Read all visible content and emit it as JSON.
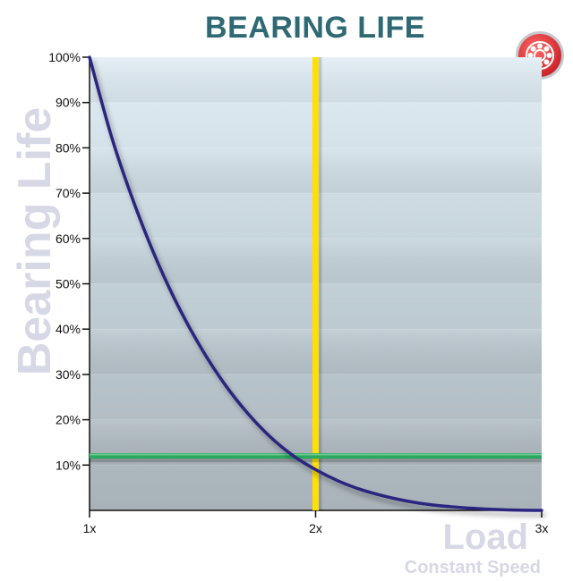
{
  "chart_data": {
    "type": "line",
    "title": "BEARING LIFE",
    "ylabel": "Bearing Life",
    "xlabel": "Load",
    "subtitle": "Constant Speed",
    "x_ticks": [
      "1x",
      "2x",
      "3x"
    ],
    "x_tick_values": [
      1,
      2,
      3
    ],
    "y_ticks": [
      "10%",
      "20%",
      "30%",
      "40%",
      "50%",
      "60%",
      "70%",
      "80%",
      "90%",
      "100%"
    ],
    "y_tick_values": [
      10,
      20,
      30,
      40,
      50,
      60,
      70,
      80,
      90,
      100
    ],
    "xlim": [
      1,
      3
    ],
    "ylim": [
      0,
      100
    ],
    "series": [
      {
        "color": "#2b2580",
        "x": [
          1.0,
          1.1,
          1.2,
          1.3,
          1.4,
          1.5,
          1.6,
          1.7,
          1.8,
          1.9,
          2.0,
          2.1,
          2.2,
          2.3,
          2.4,
          2.5,
          2.6,
          2.7,
          2.8,
          2.9,
          3.0
        ],
        "y": [
          100,
          82,
          67.4,
          54.9,
          44.3,
          35.3,
          27.7,
          21.4,
          16.2,
          12.1,
          9,
          6.5,
          4.6,
          3.2,
          2.1,
          1.3,
          0.8,
          0.45,
          0.2,
          0.05,
          0
        ]
      }
    ],
    "reference_lines": [
      {
        "orientation": "vertical",
        "x": 2,
        "color": "#ffe000"
      },
      {
        "orientation": "horizontal",
        "y": 12,
        "color": "#2aa860"
      }
    ],
    "grid": "horizontal bands",
    "colors": {
      "title": "#2f6a74",
      "axis_label": "#d6d8e6",
      "plot_top": "#e2eef6",
      "plot_bottom": "#a8b2b8",
      "badge": "#e8343c"
    },
    "icons": [
      "bearing-badge-icon"
    ]
  }
}
